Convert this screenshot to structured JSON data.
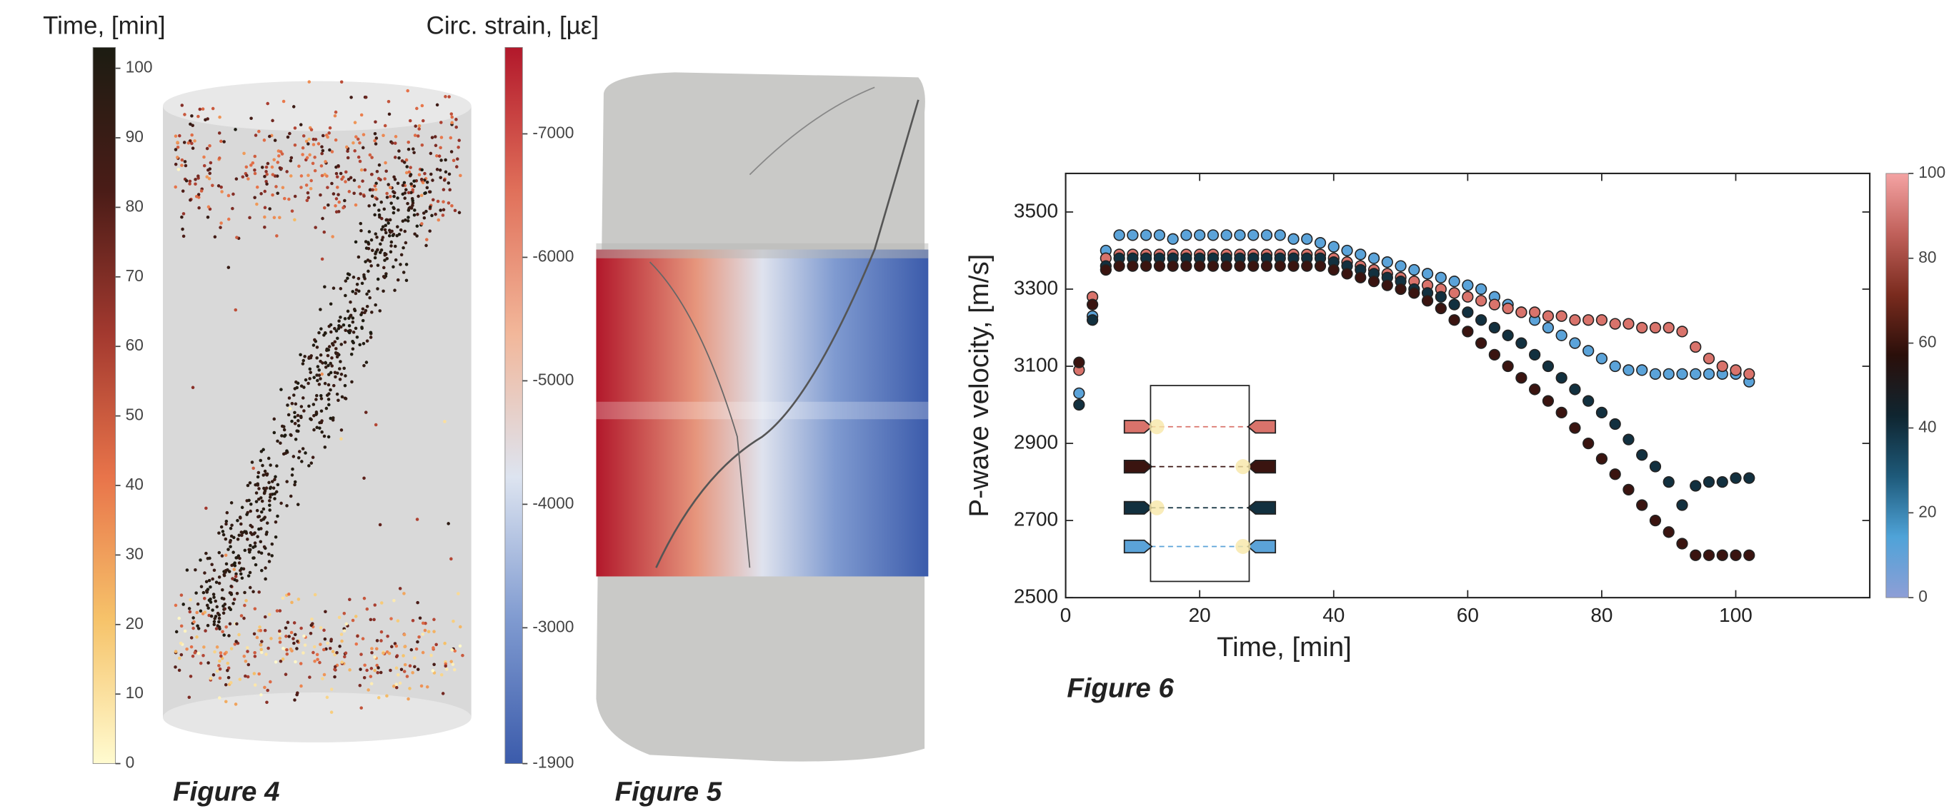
{
  "chart_data": [
    {
      "type": "point-cloud",
      "caption": "Figure 4",
      "colorbar": {
        "label": "Time, [min]",
        "lim": [
          0,
          103
        ],
        "ticks": [
          0,
          10,
          20,
          30,
          40,
          50,
          60,
          70,
          80,
          90,
          100
        ],
        "colors": [
          "#fffbd0",
          "#f6c36a",
          "#e8744a",
          "#a3392f",
          "#4a1c17",
          "#1c1c12"
        ]
      }
    },
    {
      "type": "surface-map",
      "caption": "Figure 5",
      "colorbar": {
        "label": "Circ. strain, [µε]",
        "lim": [
          -1900,
          -7700
        ],
        "ticks": [
          -1900,
          -3000,
          -4000,
          -5000,
          -6000,
          -7000
        ],
        "colors": [
          "#3b5bab",
          "#7f9ad0",
          "#dde4f0",
          "#f2b79a",
          "#e0705a",
          "#b2182b"
        ]
      }
    },
    {
      "type": "scatter",
      "caption": "Figure 6",
      "x_label": "Time, [min]",
      "y_label": "P-wave velocity, [m/s]",
      "xlim": [
        0,
        120
      ],
      "xticks": [
        0,
        20,
        40,
        60,
        80,
        100
      ],
      "ylim": [
        2500,
        3600
      ],
      "yticks": [
        2500,
        2700,
        2900,
        3100,
        3300,
        3500
      ],
      "x": [
        2,
        4,
        6,
        8,
        10,
        12,
        14,
        16,
        18,
        20,
        22,
        24,
        26,
        28,
        30,
        32,
        34,
        36,
        38,
        40,
        42,
        44,
        46,
        48,
        50,
        52,
        54,
        56,
        58,
        60,
        62,
        64,
        66,
        68,
        70,
        72,
        74,
        76,
        78,
        80,
        82,
        84,
        86,
        88,
        90,
        92,
        94,
        96,
        98,
        100,
        102
      ],
      "series": [
        {
          "color": "#5ba3d9",
          "values": [
            3030,
            3230,
            3400,
            3440,
            3440,
            3440,
            3440,
            3430,
            3440,
            3440,
            3440,
            3440,
            3440,
            3440,
            3440,
            3440,
            3430,
            3430,
            3420,
            3410,
            3400,
            3390,
            3380,
            3370,
            3360,
            3350,
            3340,
            3330,
            3320,
            3310,
            3300,
            3280,
            3260,
            3240,
            3220,
            3200,
            3180,
            3160,
            3140,
            3120,
            3100,
            3090,
            3090,
            3080,
            3080,
            3080,
            3080,
            3080,
            3080,
            3080,
            3060
          ]
        },
        {
          "color": "#d9736b",
          "values": [
            3090,
            3280,
            3380,
            3390,
            3390,
            3390,
            3390,
            3390,
            3390,
            3390,
            3390,
            3390,
            3390,
            3390,
            3390,
            3390,
            3390,
            3390,
            3390,
            3380,
            3370,
            3360,
            3350,
            3340,
            3330,
            3320,
            3310,
            3300,
            3290,
            3280,
            3270,
            3260,
            3250,
            3240,
            3240,
            3230,
            3230,
            3220,
            3220,
            3220,
            3210,
            3210,
            3200,
            3200,
            3200,
            3190,
            3150,
            3120,
            3100,
            3090,
            3080
          ]
        },
        {
          "color": "#12303f",
          "values": [
            3000,
            3220,
            3360,
            3380,
            3380,
            3380,
            3380,
            3380,
            3380,
            3380,
            3380,
            3380,
            3380,
            3380,
            3380,
            3380,
            3380,
            3380,
            3380,
            3370,
            3360,
            3350,
            3340,
            3330,
            3320,
            3300,
            3290,
            3280,
            3260,
            3240,
            3220,
            3200,
            3180,
            3160,
            3130,
            3100,
            3070,
            3040,
            3010,
            2980,
            2950,
            2910,
            2870,
            2840,
            2800,
            2740,
            2790,
            2800,
            2800,
            2810,
            2810
          ]
        },
        {
          "color": "#3a1410",
          "values": [
            3110,
            3260,
            3350,
            3360,
            3360,
            3360,
            3360,
            3360,
            3360,
            3360,
            3360,
            3360,
            3360,
            3360,
            3360,
            3360,
            3360,
            3360,
            3360,
            3350,
            3340,
            3330,
            3320,
            3310,
            3300,
            3290,
            3270,
            3250,
            3220,
            3190,
            3160,
            3130,
            3100,
            3070,
            3040,
            3010,
            2980,
            2940,
            2900,
            2860,
            2820,
            2780,
            2740,
            2700,
            2670,
            2640,
            2610,
            2610,
            2610,
            2610,
            2610
          ]
        }
      ],
      "colorbar": {
        "lim": [
          0,
          100
        ],
        "ticks": [
          0,
          20,
          40,
          60,
          80,
          100
        ],
        "colors": [
          "#8e9ed6",
          "#4fa3d8",
          "#1e5a7a",
          "#0f2530",
          "#2a0f0a",
          "#7a2b1e",
          "#c0605a",
          "#f4a3a3"
        ]
      }
    }
  ]
}
